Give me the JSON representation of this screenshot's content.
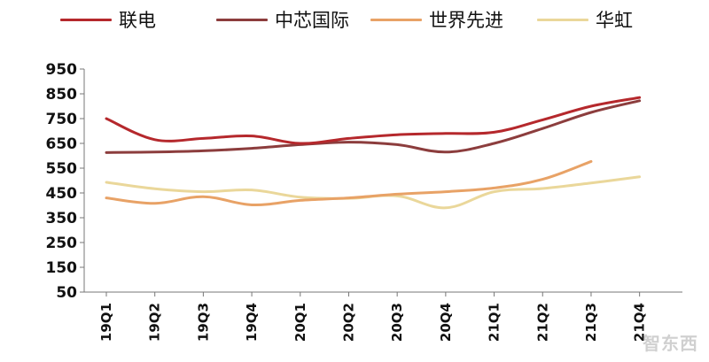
{
  "chart_data": {
    "type": "line",
    "title": "",
    "xlabel": "",
    "ylabel": "",
    "categories": [
      "19Q1",
      "19Q2",
      "19Q3",
      "19Q4",
      "20Q1",
      "20Q2",
      "20Q3",
      "20Q4",
      "21Q1",
      "21Q2",
      "21Q3",
      "21Q4"
    ],
    "ylim": [
      50,
      950
    ],
    "yticks": [
      950,
      850,
      750,
      650,
      550,
      450,
      350,
      250,
      150,
      50
    ],
    "grid": false,
    "legend_position": "top",
    "series": [
      {
        "name": "联电",
        "color": "#b5282c",
        "values": [
          750,
          665,
          670,
          680,
          650,
          670,
          685,
          690,
          695,
          745,
          800,
          835
        ]
      },
      {
        "name": "中芯国际",
        "color": "#8c3d3d",
        "values": [
          613,
          615,
          620,
          630,
          645,
          655,
          645,
          615,
          650,
          710,
          775,
          822
        ]
      },
      {
        "name": "世界先进",
        "color": "#e8a266",
        "values": [
          430,
          408,
          435,
          402,
          420,
          430,
          445,
          455,
          470,
          505,
          577,
          null
        ]
      },
      {
        "name": "华虹",
        "color": "#ead79a",
        "values": [
          493,
          467,
          455,
          462,
          433,
          428,
          438,
          390,
          455,
          468,
          490,
          515
        ]
      }
    ]
  },
  "watermark": "智东西"
}
